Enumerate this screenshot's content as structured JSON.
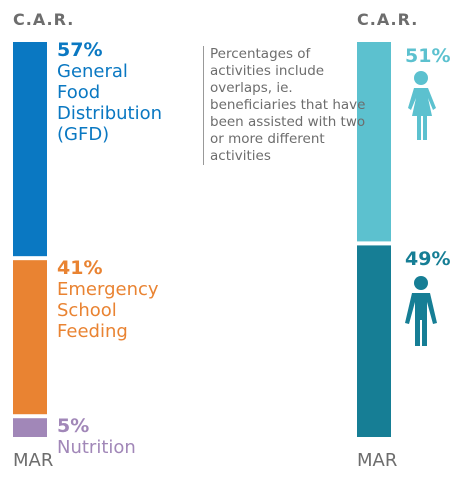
{
  "annotation": "Percentages of activities include overlaps, ie. beneficiaries that have been assisted with two or more different activities",
  "chart_data": [
    {
      "type": "stacked-bar",
      "title": "C.A.R.",
      "x_label": "MAR",
      "categories": [
        "General Food Distribution (GFD)",
        "Emergency School Feeding",
        "Nutrition"
      ],
      "values": [
        57,
        41,
        5
      ],
      "value_labels": [
        "57%",
        "41%",
        "5%"
      ],
      "colors": [
        "#0a78c2",
        "#e98332",
        "#a187b8"
      ]
    },
    {
      "type": "stacked-bar",
      "title": "C.A.R.",
      "x_label": "MAR",
      "categories": [
        null,
        null
      ],
      "values": [
        51,
        49
      ],
      "value_labels": [
        "51%",
        "49%"
      ],
      "colors": [
        "#5cc1cf",
        "#167e95"
      ]
    }
  ]
}
